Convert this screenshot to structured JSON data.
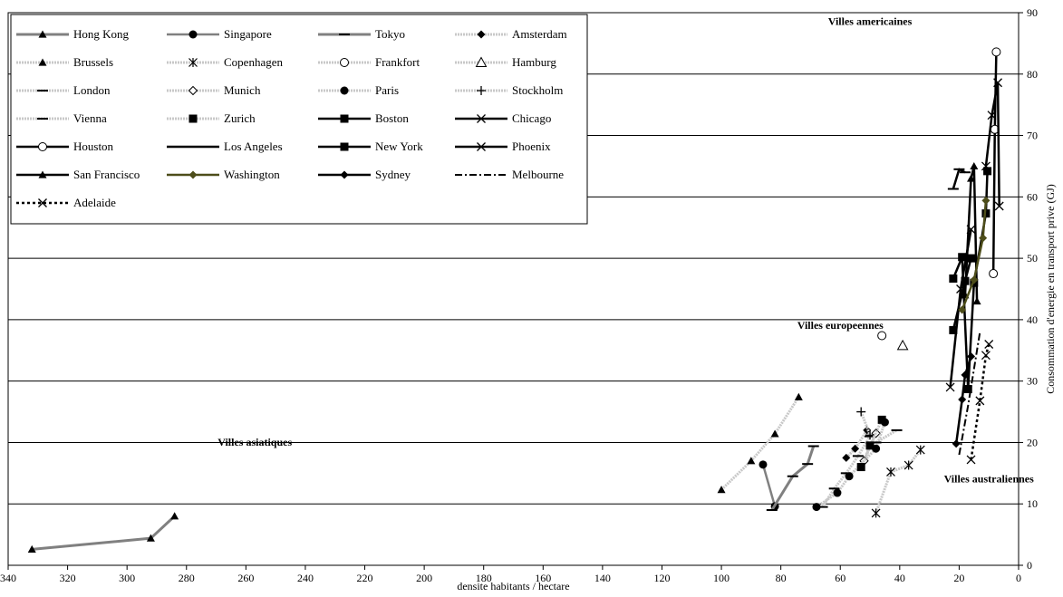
{
  "chart_data": {
    "type": "line",
    "xlabel": "densite habitants / hectare",
    "ylabel": "Consommation d'energie en transport prive (GJ)",
    "x_reversed": true,
    "xlim": [
      0,
      340
    ],
    "ylim": [
      0,
      90
    ],
    "xticks": [
      340,
      320,
      300,
      280,
      260,
      240,
      220,
      200,
      180,
      160,
      140,
      120,
      100,
      80,
      60,
      40,
      20,
      0
    ],
    "yticks": [
      0,
      10,
      20,
      30,
      40,
      50,
      60,
      70,
      80,
      90
    ],
    "grid": "horizontal",
    "legend_position": "top-left",
    "annotations": [
      {
        "text": "Villes americaines",
        "x": 50,
        "y": 88
      },
      {
        "text": "Villes europeennes",
        "x": 60,
        "y": 38.5
      },
      {
        "text": "Villes asiatiques",
        "x": 257,
        "y": 19.5
      },
      {
        "text": "Villes australiennes",
        "x": 10,
        "y": 13.5
      }
    ],
    "series": [
      {
        "name": "Hong Kong",
        "color": "#808080",
        "dash": "",
        "width": 3,
        "marker": "triangle",
        "fill": "#000000",
        "x": [
          332,
          292,
          284
        ],
        "y": [
          2.6,
          4.4,
          8.0
        ]
      },
      {
        "name": "Singapore",
        "color": "#808080",
        "dash": "",
        "width": 2.5,
        "marker": "circle",
        "fill": "#000000",
        "x": [
          86,
          82
        ],
        "y": [
          16.4,
          9.6
        ]
      },
      {
        "name": "Tokyo",
        "color": "#808080",
        "dash": "",
        "width": 3,
        "marker": "dash",
        "fill": "#000000",
        "x": [
          83,
          76,
          71,
          69
        ],
        "y": [
          9.0,
          14.5,
          16.5,
          19.4
        ]
      },
      {
        "name": "Amsterdam",
        "color": "#c8c8c8",
        "dash": "2,1",
        "width": 3,
        "marker": "diamond",
        "fill": "#000000",
        "x": [
          58,
          55,
          51
        ],
        "y": [
          17.5,
          19.0,
          22.0
        ]
      },
      {
        "name": "Brussels",
        "color": "#c8c8c8",
        "dash": "2,1",
        "width": 3,
        "marker": "triangle",
        "fill": "#000000",
        "x": [
          100,
          90,
          82,
          74
        ],
        "y": [
          12.3,
          17.0,
          21.4,
          27.4
        ]
      },
      {
        "name": "Copenhagen",
        "color": "#c8c8c8",
        "dash": "2,1",
        "width": 3,
        "marker": "asterisk",
        "fill": "#000000",
        "x": [
          48,
          43,
          37,
          33
        ],
        "y": [
          8.5,
          15.2,
          16.3,
          18.8
        ]
      },
      {
        "name": "Frankfort",
        "color": "#c8c8c8",
        "dash": "2,1",
        "width": 3,
        "marker": "circle-open",
        "fill": "#ffffff",
        "x": [
          46
        ],
        "y": [
          37.4
        ]
      },
      {
        "name": "Hamburg",
        "color": "#c8c8c8",
        "dash": "2,1",
        "width": 3,
        "marker": "triangle-open",
        "fill": "#ffffff",
        "x": [
          39
        ],
        "y": [
          35.8
        ]
      },
      {
        "name": "London",
        "color": "#c8c8c8",
        "dash": "2,1",
        "width": 3,
        "marker": "dash",
        "fill": "#000000",
        "x": [
          66,
          62,
          58,
          54,
          50
        ],
        "y": [
          9.5,
          12.5,
          15.0,
          17.8,
          21.0
        ]
      },
      {
        "name": "Munich",
        "color": "#c8c8c8",
        "dash": "2,1",
        "width": 3,
        "marker": "diamond-open",
        "fill": "#ffffff",
        "x": [
          52,
          48
        ],
        "y": [
          17.0,
          21.5
        ]
      },
      {
        "name": "Paris",
        "color": "#c8c8c8",
        "dash": "2,1",
        "width": 3,
        "marker": "circle",
        "fill": "#000000",
        "x": [
          68,
          61,
          57,
          48,
          45
        ],
        "y": [
          9.5,
          11.8,
          14.5,
          19.0,
          23.3
        ]
      },
      {
        "name": "Stockholm",
        "color": "#c8c8c8",
        "dash": "2,1",
        "width": 3,
        "marker": "plus",
        "fill": "#000000",
        "x": [
          53,
          50
        ],
        "y": [
          25.0,
          21.2
        ]
      },
      {
        "name": "Vienna",
        "color": "#c8c8c8",
        "dash": "2,1",
        "width": 3,
        "marker": "dash",
        "fill": "#000000",
        "x": [
          48,
          41
        ],
        "y": [
          20.0,
          22.0
        ]
      },
      {
        "name": "Zurich",
        "color": "#c8c8c8",
        "dash": "2,1",
        "width": 3,
        "marker": "square",
        "fill": "#000000",
        "x": [
          53,
          50,
          46
        ],
        "y": [
          16.0,
          19.5,
          23.7
        ]
      },
      {
        "name": "Boston",
        "color": "#000000",
        "dash": "",
        "width": 2.5,
        "marker": "square",
        "fill": "#000000",
        "x": [
          22,
          18,
          16
        ],
        "y": [
          38.3,
          46.3,
          50.0
        ]
      },
      {
        "name": "Chicago",
        "color": "#000000",
        "dash": "",
        "width": 2.5,
        "marker": "x",
        "fill": "#000000",
        "x": [
          23,
          19.5,
          16
        ],
        "y": [
          29.0,
          45.0,
          54.7
        ]
      },
      {
        "name": "Houston",
        "color": "#000000",
        "dash": "",
        "width": 2.5,
        "marker": "circle-open",
        "fill": "#ffffff",
        "x": [
          8.5,
          8.0,
          7.5
        ],
        "y": [
          47.5,
          71.0,
          83.6
        ]
      },
      {
        "name": "Los Angeles",
        "color": "#000000",
        "dash": "",
        "width": 2.5,
        "marker": "dash",
        "fill": "#000000",
        "x": [
          22,
          20,
          18
        ],
        "y": [
          61.3,
          64.5,
          64.0
        ]
      },
      {
        "name": "New York",
        "color": "#000000",
        "dash": "",
        "width": 2.5,
        "marker": "square",
        "fill": "#000000",
        "x": [
          22,
          19,
          17,
          15,
          11,
          10.5
        ],
        "y": [
          46.7,
          50.2,
          28.7,
          46.0,
          57.3,
          64.2
        ]
      },
      {
        "name": "Phoenix",
        "color": "#000000",
        "dash": "",
        "width": 2.5,
        "marker": "x",
        "fill": "#000000",
        "x": [
          11,
          9,
          7,
          6.5
        ],
        "y": [
          65.0,
          73.3,
          78.6,
          58.5
        ]
      },
      {
        "name": "San Francisco",
        "color": "#000000",
        "dash": "",
        "width": 2.5,
        "marker": "triangle",
        "fill": "#000000",
        "x": [
          18,
          16,
          15,
          14
        ],
        "y": [
          44.0,
          63.0,
          65.0,
          43.0
        ]
      },
      {
        "name": "Washington",
        "color": "#4d4d1a",
        "dash": "",
        "width": 2.5,
        "marker": "diamond",
        "fill": "#4d4d1a",
        "x": [
          19,
          15,
          12,
          11
        ],
        "y": [
          41.6,
          46.5,
          53.3,
          59.4
        ]
      },
      {
        "name": "Sydney",
        "color": "#000000",
        "dash": "",
        "width": 2.5,
        "marker": "diamond",
        "fill": "#000000",
        "x": [
          21,
          19,
          18,
          16
        ],
        "y": [
          19.8,
          27.0,
          31.0,
          34.0
        ]
      },
      {
        "name": "Melbourne",
        "color": "#000000",
        "dash": "8,3,2,3",
        "width": 2,
        "marker": "none",
        "fill": "#000000",
        "x": [
          20,
          17,
          15,
          13
        ],
        "y": [
          18.0,
          26.0,
          32.0,
          38.0
        ]
      },
      {
        "name": "Adelaide",
        "color": "#000000",
        "dash": "3,3",
        "width": 2.5,
        "marker": "x",
        "fill": "#000000",
        "x": [
          16,
          13,
          11,
          10
        ],
        "y": [
          17.2,
          26.8,
          34.2,
          36.0
        ]
      }
    ]
  }
}
